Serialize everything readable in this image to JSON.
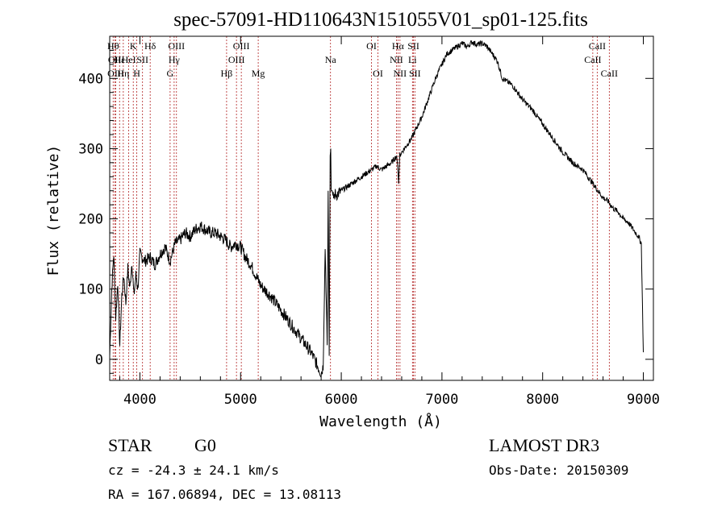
{
  "chart_data": {
    "type": "line",
    "title": "spec-57091-HD110643N151055V01_sp01-125.fits",
    "xlabel": "Wavelength (Å)",
    "ylabel": "Flux (relative)",
    "xlim": [
      3700,
      9100
    ],
    "ylim": [
      -30,
      460
    ],
    "xticks": [
      4000,
      5000,
      6000,
      7000,
      8000,
      9000
    ],
    "yticks": [
      0,
      100,
      200,
      300,
      400
    ],
    "series": [
      {
        "values_x": [
          3700,
          3720,
          3740,
          3760,
          3780,
          3800,
          3820,
          3840,
          3860,
          3880,
          3900,
          3920,
          3940,
          3960,
          3980,
          4000,
          4050,
          4100,
          4150,
          4200,
          4250,
          4300,
          4350,
          4400,
          4450,
          4500,
          4550,
          4600,
          4650,
          4700,
          4750,
          4800,
          4850,
          4900,
          4950,
          5000,
          5050,
          5100,
          5150,
          5200,
          5300,
          5400,
          5500,
          5600,
          5700,
          5750,
          5800,
          5820,
          5840,
          5860,
          5870,
          5880,
          5890,
          5895,
          5900,
          5910,
          5920,
          5940,
          5960,
          6000,
          6050,
          6100,
          6150,
          6200,
          6250,
          6300,
          6350,
          6400,
          6450,
          6500,
          6550,
          6560,
          6570,
          6580,
          6600,
          6650,
          6700,
          6750,
          6800,
          6850,
          6900,
          6950,
          7000,
          7050,
          7100,
          7150,
          7200,
          7250,
          7300,
          7350,
          7400,
          7450,
          7500,
          7550,
          7600,
          7650,
          7700,
          7800,
          7900,
          8000,
          8100,
          8200,
          8300,
          8400,
          8500,
          8550,
          8600,
          8650,
          8700,
          8750,
          8800,
          8850,
          8900,
          8950,
          8980,
          9000
        ],
        "values_y": [
          5,
          100,
          150,
          60,
          110,
          20,
          90,
          120,
          80,
          130,
          100,
          140,
          90,
          120,
          100,
          150,
          140,
          145,
          135,
          150,
          160,
          140,
          165,
          170,
          180,
          175,
          185,
          190,
          185,
          180,
          180,
          175,
          170,
          160,
          165,
          160,
          145,
          135,
          120,
          105,
          90,
          70,
          50,
          30,
          10,
          -5,
          -20,
          -10,
          160,
          20,
          240,
          5,
          290,
          300,
          240,
          240,
          230,
          235,
          235,
          240,
          245,
          250,
          255,
          260,
          265,
          270,
          275,
          270,
          275,
          280,
          290,
          275,
          250,
          290,
          295,
          305,
          315,
          330,
          345,
          365,
          385,
          405,
          420,
          435,
          440,
          445,
          450,
          445,
          452,
          448,
          450,
          445,
          435,
          425,
          400,
          395,
          390,
          370,
          355,
          335,
          315,
          295,
          280,
          270,
          250,
          240,
          230,
          225,
          215,
          210,
          200,
          195,
          185,
          175,
          165,
          10
        ],
        "name": ""
      }
    ],
    "lines": [
      {
        "x": 3734,
        "label": "Hθ",
        "row": 1
      },
      {
        "x": 3750,
        "label": "OII",
        "row": 2
      },
      {
        "x": 3760,
        "label": "OIII",
        "row": 3
      },
      {
        "x": 3798,
        "label": "Hε",
        "row": 2
      },
      {
        "x": 3835,
        "label": "Hη",
        "row": 3
      },
      {
        "x": 3889,
        "label": "HeI",
        "row": 2
      },
      {
        "x": 3934,
        "label": "K",
        "row": 1
      },
      {
        "x": 3969,
        "label": "H",
        "row": 3
      },
      {
        "x": 4026,
        "label": "SII",
        "row": 2
      },
      {
        "x": 4102,
        "label": "Hδ",
        "row": 1
      },
      {
        "x": 4300,
        "label": "G",
        "row": 3
      },
      {
        "x": 4340,
        "label": "Hγ",
        "row": 2
      },
      {
        "x": 4363,
        "label": "OIII",
        "row": 1
      },
      {
        "x": 4861,
        "label": "Hβ",
        "row": 3
      },
      {
        "x": 4959,
        "label": "OIII",
        "row": 2
      },
      {
        "x": 5007,
        "label": "OIII",
        "row": 1
      },
      {
        "x": 5175,
        "label": "Mg",
        "row": 3
      },
      {
        "x": 5893,
        "label": "Na",
        "row": 2
      },
      {
        "x": 6300,
        "label": "OI",
        "row": 1
      },
      {
        "x": 6364,
        "label": "OI",
        "row": 3
      },
      {
        "x": 6548,
        "label": "NII",
        "row": 2
      },
      {
        "x": 6563,
        "label": "Hα",
        "row": 1
      },
      {
        "x": 6583,
        "label": "NII",
        "row": 3
      },
      {
        "x": 6707,
        "label": "Li",
        "row": 2
      },
      {
        "x": 6717,
        "label": "SII",
        "row": 1
      },
      {
        "x": 6731,
        "label": "SII",
        "row": 3
      },
      {
        "x": 8498,
        "label": "CaII",
        "row": 2
      },
      {
        "x": 8542,
        "label": "CaII",
        "row": 1
      },
      {
        "x": 8662,
        "label": "CaII",
        "row": 3
      }
    ],
    "grid": false,
    "legend": "none"
  },
  "info": {
    "class": "STAR",
    "subclass": "G0",
    "survey": "LAMOST DR3",
    "cz": "cz = -24.3 ± 24.1 km/s",
    "obsdate": "Obs-Date: 20150309",
    "radec": "RA = 167.06894, DEC =  13.08113"
  },
  "colors": {
    "spectrum": "#000000",
    "line_markers": "#b22222"
  }
}
